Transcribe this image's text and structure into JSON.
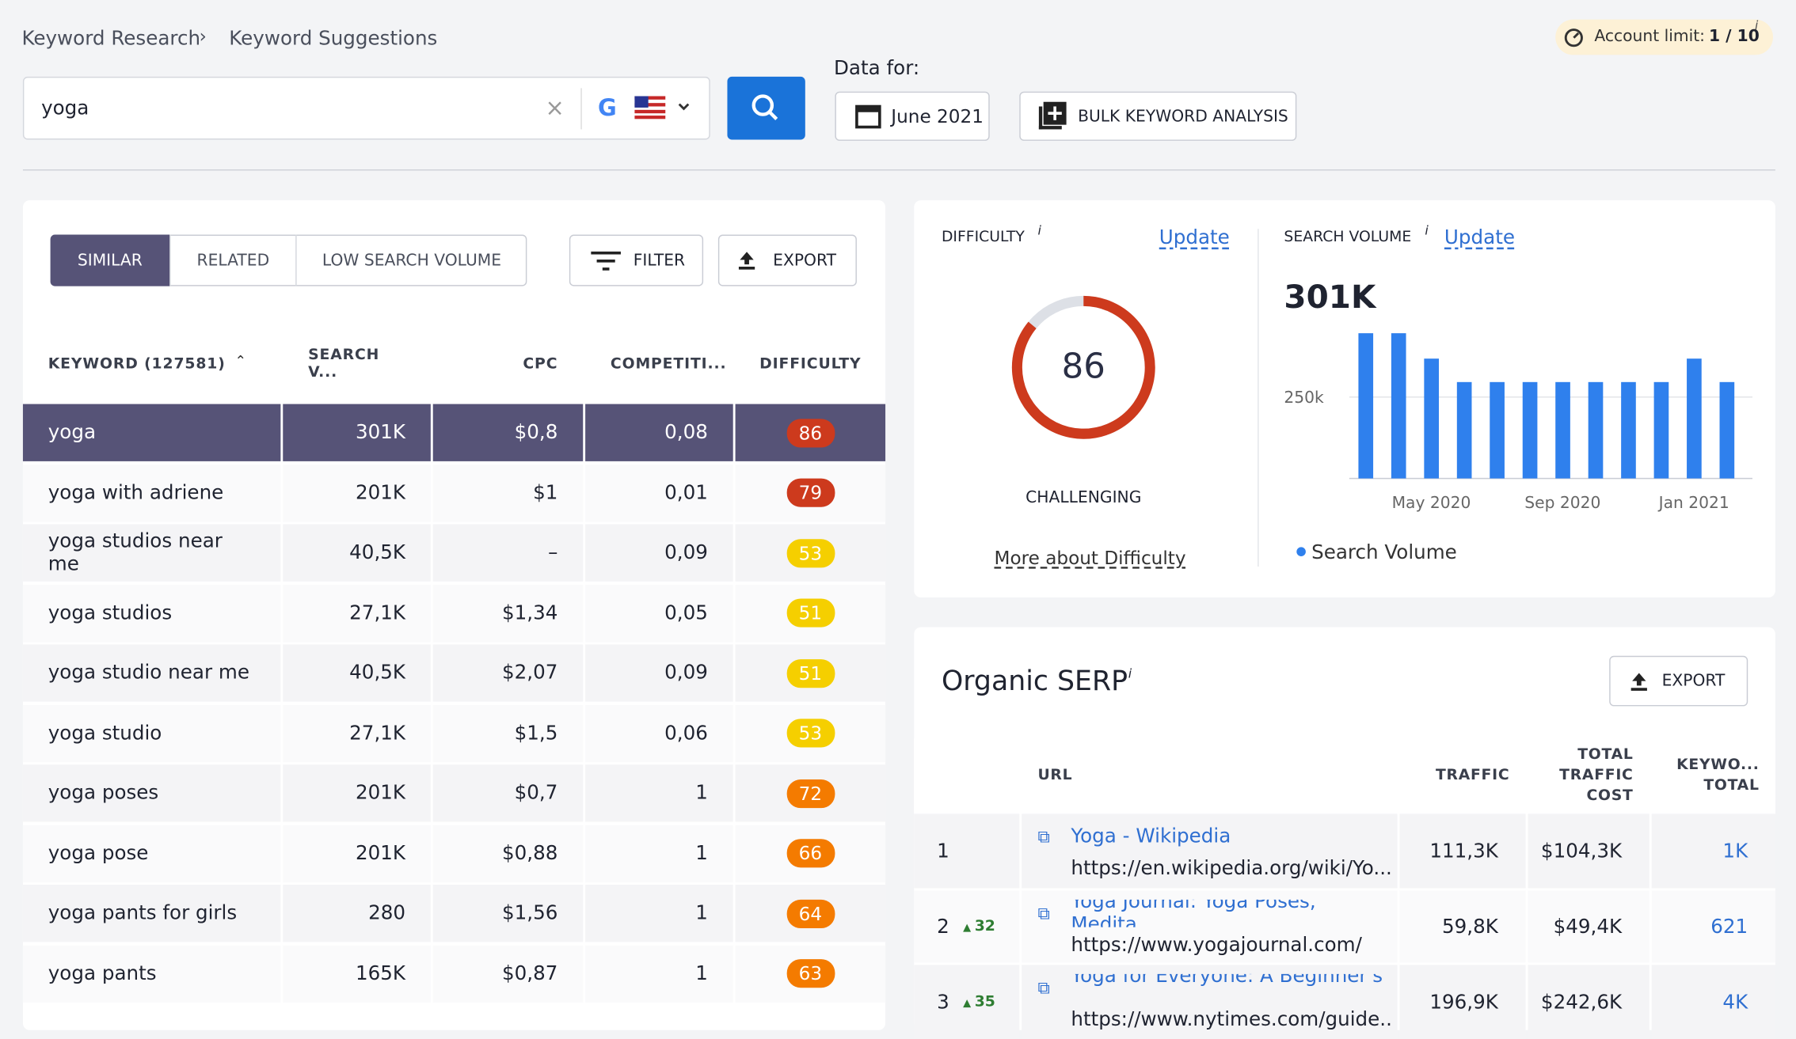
{
  "breadcrumb": [
    "Keyword Research",
    "Keyword Suggestions"
  ],
  "search": {
    "query": "yoga",
    "data_for": "Data for:",
    "date": "June 2021",
    "bulk": "BULK KEYWORD ANALYSIS"
  },
  "account": {
    "label": "Account limit:",
    "value": "1 / 10",
    "info": "i"
  },
  "tabs": [
    "SIMILAR",
    "RELATED",
    "LOW SEARCH VOLUME"
  ],
  "filter": "FILTER",
  "export": "EXPORT",
  "keywords": {
    "headers": [
      "KEYWORD  (127581)",
      "SEARCH V...",
      "CPC",
      "COMPETITI...",
      "DIFFICULTY"
    ],
    "rows": [
      [
        "yoga",
        "301K",
        "$0,8",
        "0,08",
        86
      ],
      [
        "yoga with adriene",
        "201K",
        "$1",
        "0,01",
        79
      ],
      [
        "yoga studios near me",
        "40,5K",
        "–",
        "0,09",
        53
      ],
      [
        "yoga studios",
        "27,1K",
        "$1,34",
        "0,05",
        51
      ],
      [
        "yoga studio near me",
        "40,5K",
        "$2,07",
        "0,09",
        51
      ],
      [
        "yoga studio",
        "27,1K",
        "$1,5",
        "0,06",
        53
      ],
      [
        "yoga poses",
        "201K",
        "$0,7",
        "1",
        72
      ],
      [
        "yoga pose",
        "201K",
        "$0,88",
        "1",
        66
      ],
      [
        "yoga pants for girls",
        "280",
        "$1,56",
        "1",
        64
      ],
      [
        "yoga pants",
        "165K",
        "$0,87",
        "1",
        63
      ]
    ],
    "difficulty_colors": [
      {
        "min": 75,
        "color": "#cd3a1d"
      },
      {
        "min": 60,
        "color": "#f47b00"
      },
      {
        "min": 0,
        "color": "#f5cf00"
      }
    ]
  },
  "difficulty": {
    "title": "DIFFICULTY",
    "info": "i",
    "update": "Update",
    "score": 86,
    "max": 100,
    "level": "CHALLENGING",
    "more": "More about Difficulty",
    "color": "#cd3a1d"
  },
  "volume": {
    "title": "SEARCH VOLUME",
    "info": "i",
    "update": "Update",
    "total": "301K",
    "chart_data": {
      "type": "bar",
      "categories": [
        null,
        null,
        "May 2020",
        null,
        null,
        null,
        "Sep 2020",
        null,
        null,
        null,
        "Jan 2021",
        null
      ],
      "series": [
        {
          "name": "Search Volume",
          "color": "#2f80ed",
          "values": [
            446000,
            446000,
            368000,
            296000,
            296000,
            296000,
            296000,
            296000,
            296000,
            296000,
            368000,
            296000
          ]
        }
      ],
      "ylim": [
        0,
        450000
      ],
      "yticks": [
        {
          "value": 250000,
          "label": "250k"
        }
      ],
      "grid": true
    }
  },
  "serp": {
    "title": "Organic SERP",
    "info": "i",
    "export": "EXPORT",
    "headers": [
      "URL",
      "TRAFFIC",
      "TOTAL TRAFFIC COST",
      "KEYWO... TOTAL"
    ],
    "rows": [
      {
        "rank": "1",
        "change": null,
        "title": "Yoga - Wikipedia",
        "url": "https://en.wikipedia.org/wiki/Yo...",
        "traffic": "111,3K",
        "cost": "$104,3K",
        "keywords": "1K"
      },
      {
        "rank": "2",
        "change": "32",
        "title": "Yoga Journal: Yoga Poses, Medita...",
        "url": "https://www.yogajournal.com/",
        "traffic": "59,8K",
        "cost": "$49,4K",
        "keywords": "621"
      },
      {
        "rank": "3",
        "change": "35",
        "title": "Yoga for Everyone: A Beginner's ...",
        "url": "https://www.nytimes.com/guide...",
        "traffic": "196,9K",
        "cost": "$242,6K",
        "keywords": "4K"
      }
    ]
  }
}
